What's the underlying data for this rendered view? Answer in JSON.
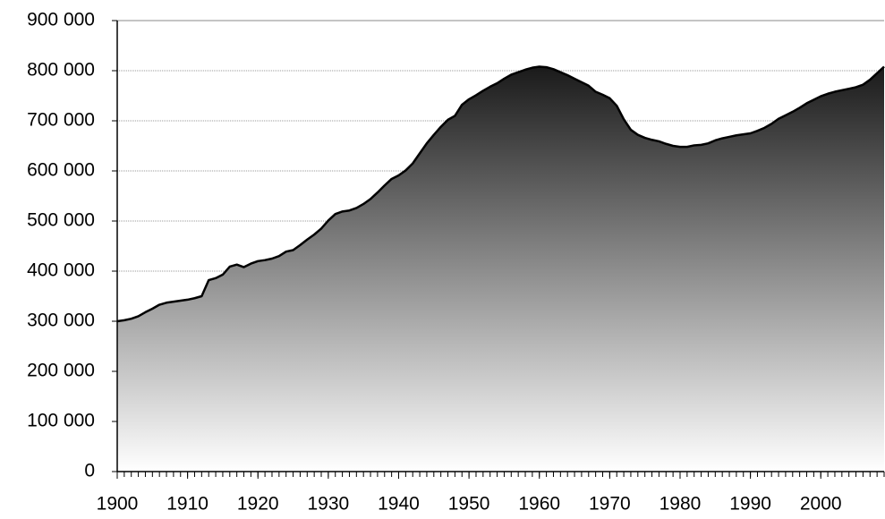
{
  "chart_data": {
    "type": "area",
    "x": [
      1900,
      1901,
      1902,
      1903,
      1904,
      1905,
      1906,
      1907,
      1908,
      1909,
      1910,
      1911,
      1912,
      1913,
      1914,
      1915,
      1916,
      1917,
      1918,
      1919,
      1920,
      1921,
      1922,
      1923,
      1924,
      1925,
      1926,
      1927,
      1928,
      1929,
      1930,
      1931,
      1932,
      1933,
      1934,
      1935,
      1936,
      1937,
      1938,
      1939,
      1940,
      1941,
      1942,
      1943,
      1944,
      1945,
      1946,
      1947,
      1948,
      1949,
      1950,
      1951,
      1952,
      1953,
      1954,
      1955,
      1956,
      1957,
      1958,
      1959,
      1960,
      1961,
      1962,
      1963,
      1964,
      1965,
      1966,
      1967,
      1968,
      1969,
      1970,
      1971,
      1972,
      1973,
      1974,
      1975,
      1976,
      1977,
      1978,
      1979,
      1980,
      1981,
      1982,
      1983,
      1984,
      1985,
      1986,
      1987,
      1988,
      1989,
      1990,
      1991,
      1992,
      1993,
      1994,
      1995,
      1996,
      1997,
      1998,
      1999,
      2000,
      2001,
      2002,
      2003,
      2004,
      2005,
      2006,
      2007,
      2008,
      2009
    ],
    "values": [
      300000,
      302000,
      305000,
      310000,
      318000,
      325000,
      333000,
      337000,
      339000,
      341000,
      343000,
      346000,
      350000,
      382000,
      386000,
      393000,
      409000,
      413000,
      408000,
      415000,
      420000,
      422000,
      425000,
      430000,
      439000,
      442000,
      452000,
      463000,
      473000,
      485000,
      501000,
      514000,
      519000,
      521000,
      526000,
      534000,
      544000,
      557000,
      571000,
      584000,
      591000,
      601000,
      615000,
      635000,
      655000,
      672000,
      688000,
      702000,
      710000,
      732000,
      743000,
      751000,
      760000,
      768000,
      775000,
      784000,
      792000,
      797000,
      802000,
      806000,
      808000,
      807000,
      803000,
      797000,
      791000,
      784000,
      777000,
      770000,
      758000,
      752000,
      745000,
      730000,
      703000,
      682000,
      672000,
      666000,
      662000,
      659000,
      654000,
      650000,
      648000,
      648000,
      651000,
      652000,
      655000,
      661000,
      665000,
      668000,
      671000,
      673000,
      675000,
      680000,
      686000,
      694000,
      704000,
      711000,
      718000,
      726000,
      735000,
      742000,
      749000,
      754000,
      758000,
      761000,
      764000,
      767000,
      772000,
      782000,
      795000,
      808000
    ],
    "color": "#222222",
    "xlim": [
      1900,
      2009
    ],
    "xticks": [
      1900,
      1910,
      1920,
      1930,
      1940,
      1950,
      1960,
      1970,
      1980,
      1990,
      2000
    ],
    "ylim": [
      0,
      900000
    ],
    "yticks": [
      0,
      {
        "value": 100000,
        "label": "100 000"
      },
      {
        "value": 200000,
        "label": "200 000"
      },
      {
        "value": 300000,
        "label": "300 000"
      },
      {
        "value": 400000,
        "label": "400 000"
      },
      {
        "value": 500000,
        "label": "500 000"
      },
      {
        "value": 600000,
        "label": "600 000"
      },
      {
        "value": 700000,
        "label": "700 000"
      },
      {
        "value": 800000,
        "label": "800 000"
      },
      {
        "value": 900000,
        "label": "900 000"
      }
    ],
    "grid": true
  }
}
